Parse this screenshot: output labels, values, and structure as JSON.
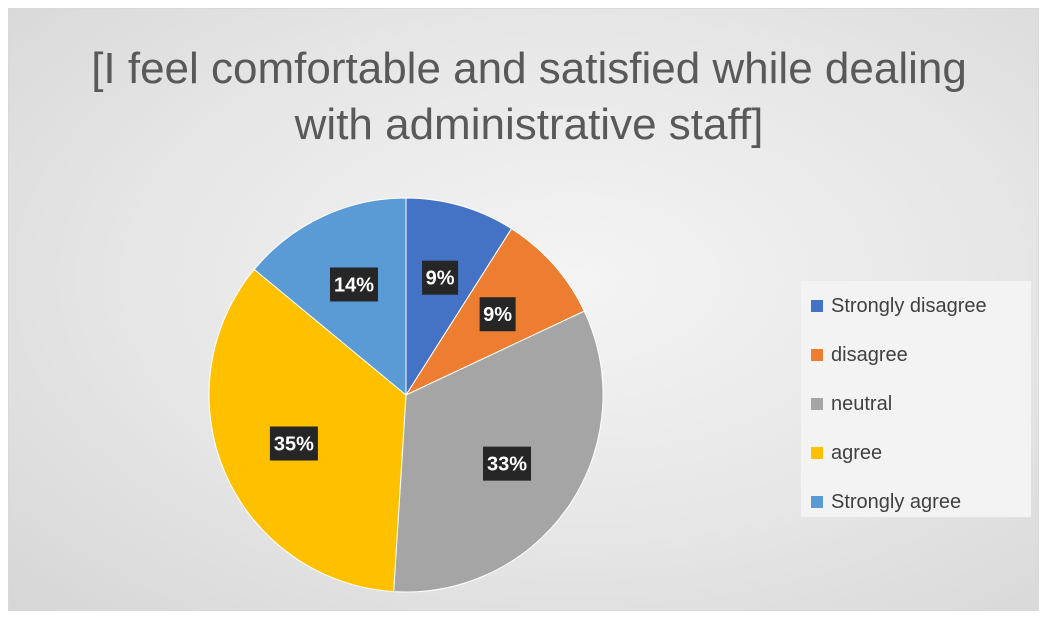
{
  "chart_data": {
    "type": "pie",
    "title": "[I feel comfortable and satisfied while dealing with administrative staff]",
    "categories": [
      "Strongly disagree",
      "disagree",
      "neutral",
      "agree",
      "Strongly agree"
    ],
    "values": [
      9,
      9,
      33,
      35,
      14
    ],
    "data_labels": [
      "9%",
      "9%",
      "33%",
      "35%",
      "14%"
    ],
    "colors": [
      "#4472c4",
      "#ed7d31",
      "#a5a5a5",
      "#ffc000",
      "#5b9bd5"
    ],
    "start_angle_deg": 0,
    "direction": "clockwise",
    "legend_position": "right"
  }
}
